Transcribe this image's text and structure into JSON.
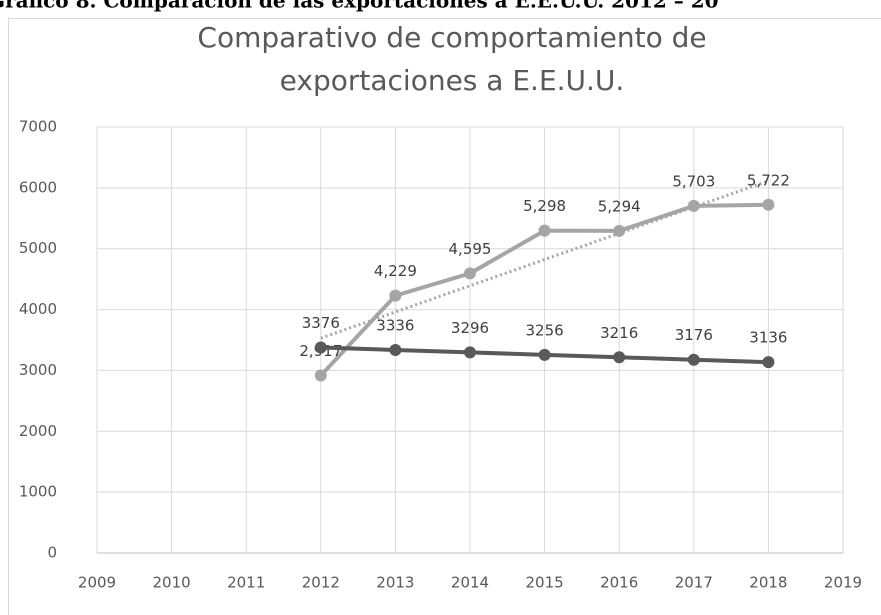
{
  "caption": "Gráfico 8. Comparación de las exportaciones a E.E.U.U. 2012 – 20",
  "chart_data": {
    "type": "line",
    "title": [
      "Comparativo de comportamiento de",
      "exportaciones a E.E.U.U."
    ],
    "x": [
      2012,
      2013,
      2014,
      2015,
      2016,
      2017,
      2018
    ],
    "series": [
      {
        "color": "#a5a5a5",
        "values": [
          2917,
          4229,
          4595,
          5298,
          5294,
          5703,
          5722
        ],
        "value_labels": [
          "2,917",
          "4,229",
          "4,595",
          "5,298",
          "5,294",
          "5,703",
          "5,722"
        ],
        "trendline": true
      },
      {
        "color": "#595959",
        "values": [
          3376,
          3336,
          3296,
          3256,
          3216,
          3176,
          3136
        ]
      }
    ],
    "xlim": [
      2009,
      2019
    ],
    "xticks": [
      2009,
      2010,
      2011,
      2012,
      2013,
      2014,
      2015,
      2016,
      2017,
      2018,
      2019
    ],
    "ylim": [
      0,
      7000
    ],
    "yticks": [
      0,
      1000,
      2000,
      3000,
      4000,
      5000,
      6000,
      7000
    ],
    "grid": true
  }
}
